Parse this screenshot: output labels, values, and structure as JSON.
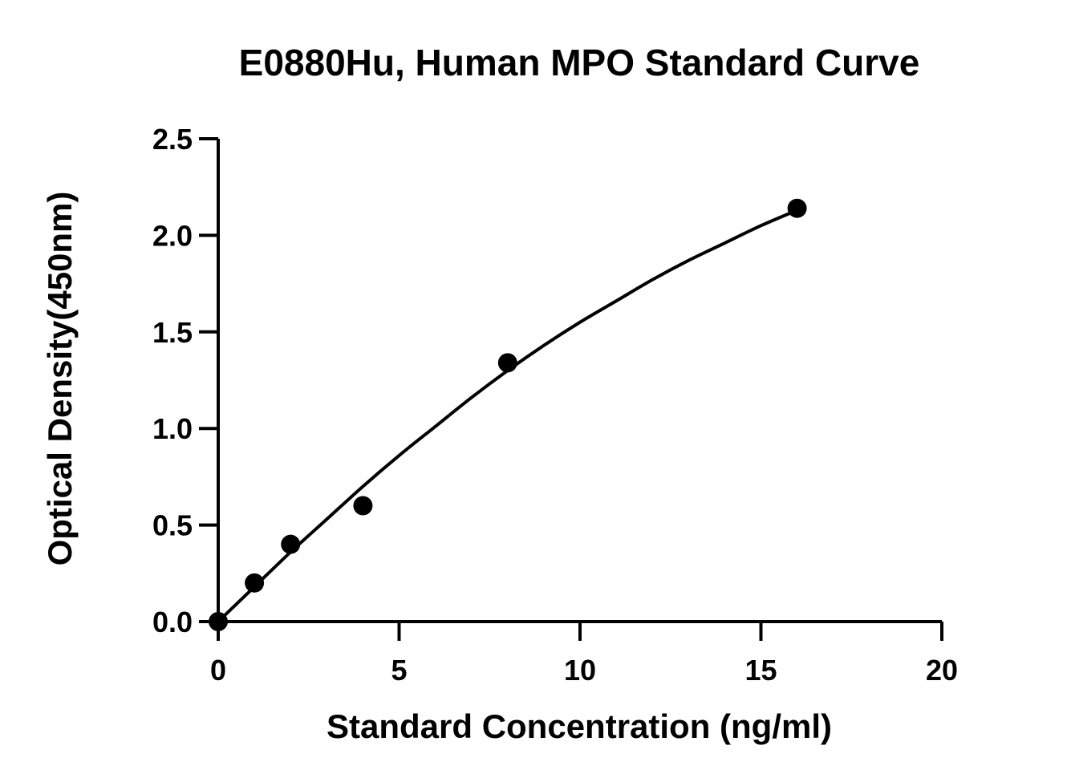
{
  "chart_data": {
    "type": "scatter",
    "title": "E0880Hu, Human MPO Standard Curve",
    "xlabel": "Standard Concentration (ng/ml)",
    "ylabel": "Optical Density(450nm)",
    "xlim": [
      0,
      20
    ],
    "ylim": [
      0,
      2.5
    ],
    "xticks": [
      0,
      5,
      10,
      15,
      20
    ],
    "xtick_labels": [
      "0",
      "5",
      "10",
      "15",
      "20"
    ],
    "yticks": [
      0,
      0.5,
      1.0,
      1.5,
      2.0,
      2.5
    ],
    "ytick_labels": [
      "0.0",
      "0.5",
      "1.0",
      "1.5",
      "2.0",
      "2.5"
    ],
    "grid": false,
    "series": [
      {
        "points": [
          {
            "x": 0,
            "y": 0.0
          },
          {
            "x": 1,
            "y": 0.2
          },
          {
            "x": 2,
            "y": 0.4
          },
          {
            "x": 4,
            "y": 0.6
          },
          {
            "x": 8,
            "y": 1.34
          },
          {
            "x": 16,
            "y": 2.14
          }
        ],
        "color": "#000000"
      }
    ],
    "fit_curve": {
      "points": [
        {
          "x": 0,
          "y": 0.0
        },
        {
          "x": 1,
          "y": 0.18
        },
        {
          "x": 2,
          "y": 0.36
        },
        {
          "x": 3,
          "y": 0.53
        },
        {
          "x": 4,
          "y": 0.7
        },
        {
          "x": 5,
          "y": 0.86
        },
        {
          "x": 6,
          "y": 1.01
        },
        {
          "x": 7,
          "y": 1.16
        },
        {
          "x": 8,
          "y": 1.3
        },
        {
          "x": 9,
          "y": 1.43
        },
        {
          "x": 10,
          "y": 1.55
        },
        {
          "x": 11,
          "y": 1.66
        },
        {
          "x": 12,
          "y": 1.77
        },
        {
          "x": 13,
          "y": 1.87
        },
        {
          "x": 14,
          "y": 1.96
        },
        {
          "x": 15,
          "y": 2.05
        },
        {
          "x": 16,
          "y": 2.13
        }
      ],
      "color": "#000000"
    }
  }
}
